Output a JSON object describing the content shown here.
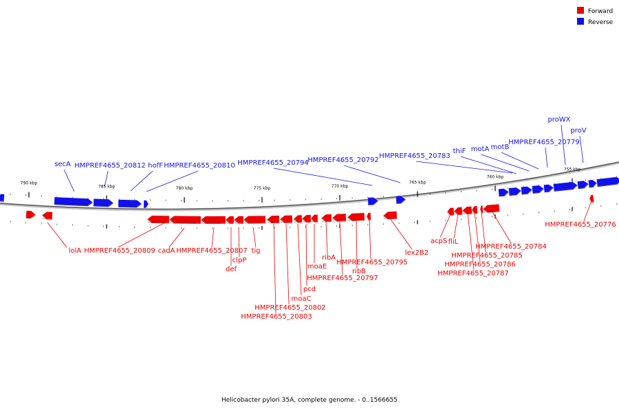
{
  "legend": [
    {
      "label": "Forward",
      "color": "#ee0000"
    },
    {
      "label": "Reverse",
      "color": "#1111ee"
    }
  ],
  "caption": "Helicobacter pylori 35A, complete genome. - 0..1566655",
  "scale_labels": [
    "790 kbp",
    "785 kbp",
    "780 kbp",
    "775 kbp",
    "770 kbp",
    "765 kbp",
    "760 kbp",
    "755 kbp"
  ],
  "reverse_genes": [
    "secA",
    "HMPREF4655_20812",
    "hofF",
    "HMPREF4655_20810",
    "HMPREF4655_20794",
    "HMPREF4655_20792",
    "HMPREF4655_20783",
    "thiF",
    "motA",
    "motB",
    "HMPREF4655_20779",
    "proWX",
    "proV"
  ],
  "forward_genes": [
    "lolA",
    "HMPREF4655_20809",
    "cadA",
    "HMPREF4655_20807",
    "def",
    "clpP",
    "tig",
    "HMPREF4655_20803",
    "HMPREF4655_20802",
    "moaC",
    "pcd",
    "moaE",
    "HMPREF4655_20797",
    "ribA",
    "ribB",
    "HMPREF4655_20795",
    "lex2B2",
    "acpS",
    "fliL",
    "HMPREF4655_20787",
    "HMPREF4655_20786",
    "HMPREF4655_20785",
    "HMPREF4655_20784",
    "HMPREF4655_20776"
  ]
}
